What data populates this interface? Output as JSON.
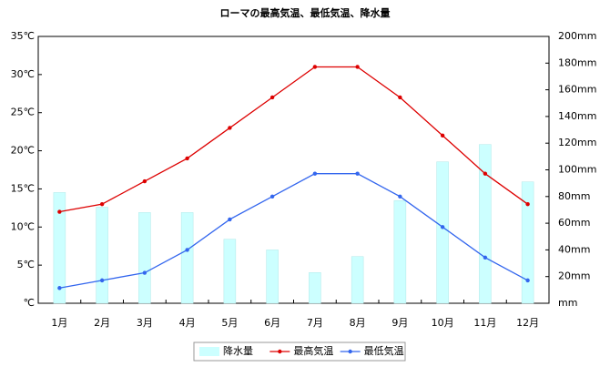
{
  "chart_data": {
    "type": "combo",
    "title": "ローマの最高気温、最低気温、降水量",
    "categories": [
      "1月",
      "2月",
      "3月",
      "4月",
      "5月",
      "6月",
      "7月",
      "8月",
      "9月",
      "10月",
      "11月",
      "12月"
    ],
    "series": [
      {
        "name": "降水量",
        "type": "bar",
        "axis": "y2",
        "color": "#ccffff",
        "values": [
          83,
          72,
          68,
          68,
          48,
          40,
          23,
          35,
          77,
          106,
          119,
          91
        ]
      },
      {
        "name": "最高気温",
        "type": "line",
        "color": "#dd0000",
        "values": [
          12,
          13,
          16,
          19,
          23,
          27,
          31,
          31,
          27,
          22,
          17,
          13
        ]
      },
      {
        "name": "最低気温",
        "type": "line",
        "color": "#3366ee",
        "values": [
          2,
          3,
          4,
          7,
          11,
          14,
          17,
          17,
          14,
          10,
          6,
          3
        ]
      }
    ],
    "ylim": [
      0,
      35
    ],
    "yticks": [
      {
        "value": 0,
        "label": "℃"
      },
      {
        "value": 5,
        "label": "5℃"
      },
      {
        "value": 10,
        "label": "10℃"
      },
      {
        "value": 15,
        "label": "15℃"
      },
      {
        "value": 20,
        "label": "20℃"
      },
      {
        "value": 25,
        "label": "25℃"
      },
      {
        "value": 30,
        "label": "30℃"
      },
      {
        "value": 35,
        "label": "35℃"
      }
    ],
    "y2lim": [
      0,
      200
    ],
    "y2ticks": [
      {
        "value": 0,
        "label": "mm"
      },
      {
        "value": 20,
        "label": "20mm"
      },
      {
        "value": 40,
        "label": "40mm"
      },
      {
        "value": 60,
        "label": "60mm"
      },
      {
        "value": 80,
        "label": "80mm"
      },
      {
        "value": 100,
        "label": "100mm"
      },
      {
        "value": 120,
        "label": "120mm"
      },
      {
        "value": 140,
        "label": "140mm"
      },
      {
        "value": 160,
        "label": "160mm"
      },
      {
        "value": 180,
        "label": "180mm"
      },
      {
        "value": 200,
        "label": "200mm"
      }
    ],
    "legend": "bottom"
  }
}
